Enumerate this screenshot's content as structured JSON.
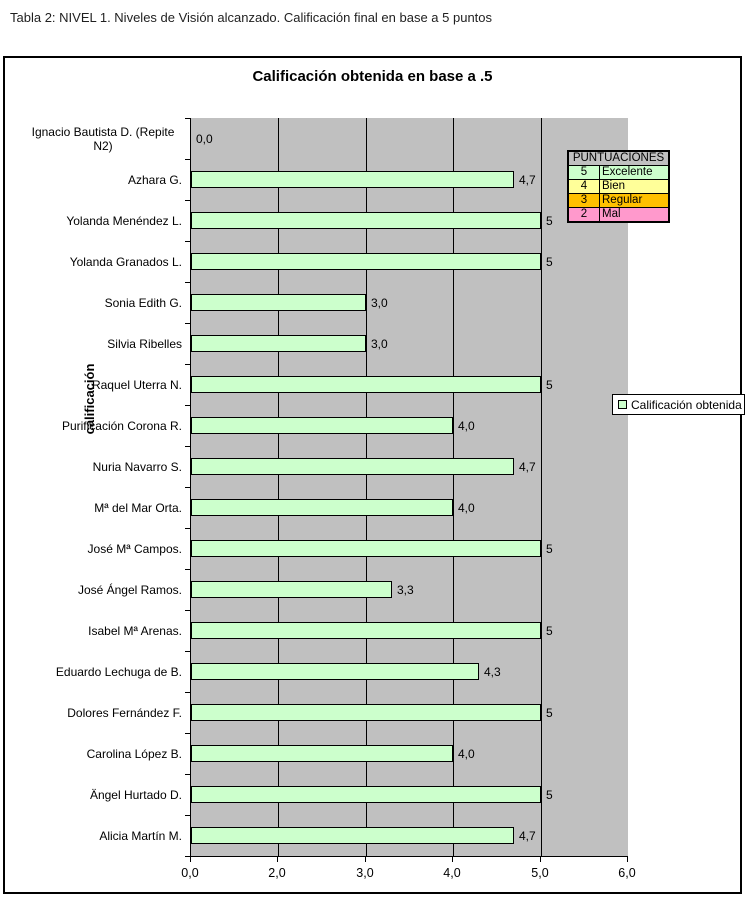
{
  "page": {
    "caption": "Tabla 2: NIVEL 1. Niveles de Visión alcanzado. Calificación final en base a 5 puntos"
  },
  "chart_data": {
    "type": "bar",
    "orientation": "horizontal",
    "title": "Calificación obtenida en base a .5",
    "ylabel": "calificación",
    "xlabel": "",
    "x_ticks": [
      "0,0",
      "2,0",
      "3,0",
      "4,0",
      "5,0",
      "6,0"
    ],
    "x_tick_values": [
      0,
      2,
      3,
      4,
      5,
      6
    ],
    "xlim": [
      0,
      6
    ],
    "grid": "vertical-only",
    "plot_bg_color": "#c0c0c0",
    "bar_color": "#ccffcc",
    "bar_border_color": "#000000",
    "categories": [
      "Ignacio Bautista D. (Repite N2)",
      "Azhara G.",
      "Yolanda Menéndez L.",
      "Yolanda Granados L.",
      "Sonia Edith G.",
      "Silvia Ribelles",
      "Raquel Uterra N.",
      "Purificación Corona R.",
      "Nuria Navarro S.",
      "Mª del Mar Orta.",
      "José Mª Campos.",
      "José Ángel Ramos.",
      "Isabel Mª Arenas.",
      "Eduardo Lechuga de B.",
      "Dolores Fernández F.",
      "Carolina López B.",
      "Ängel Hurtado D.",
      "Alicia Martín M."
    ],
    "values": [
      0,
      4.7,
      5,
      5,
      3,
      3,
      5,
      4,
      4.7,
      4,
      5,
      3.3,
      5,
      4.3,
      5,
      4,
      5,
      4.7
    ],
    "value_labels": [
      "0,0",
      "4,7",
      "5",
      "5",
      "3,0",
      "3,0",
      "5",
      "4,0",
      "4,7",
      "4,0",
      "5",
      "3,3",
      "5",
      "4,3",
      "5",
      "4,0",
      "5",
      "4,7"
    ],
    "legend": {
      "position": "right",
      "label": "Calificación obtenida",
      "marker_color": "#ccffcc"
    }
  },
  "score_table": {
    "title": "PUNTUACIONES",
    "header_bg": "#c0c0c0",
    "rows": [
      {
        "score": "5",
        "label": "Excelente",
        "color": "#ccffcc"
      },
      {
        "score": "4",
        "label": "Bien",
        "color": "#ffff99"
      },
      {
        "score": "3",
        "label": "Regular",
        "color": "#ffc000"
      },
      {
        "score": "2",
        "label": "Mal",
        "color": "#ff99cc"
      }
    ]
  }
}
